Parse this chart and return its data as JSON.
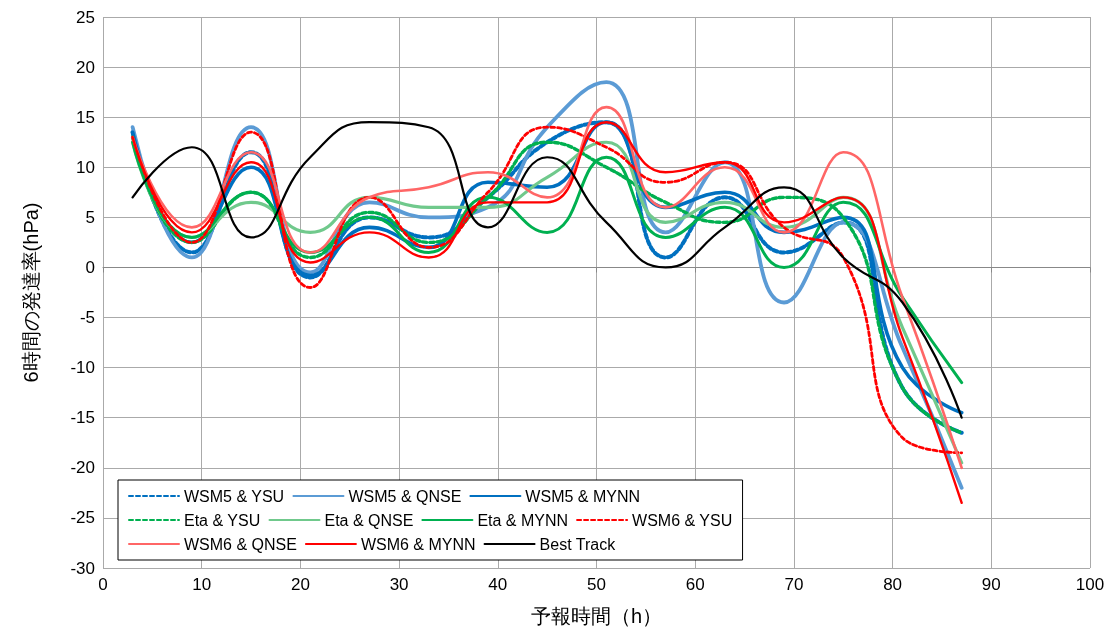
{
  "chart_data": {
    "type": "line",
    "xlabel": "予報時間（h）",
    "ylabel": "6時間の発達率(hPa)",
    "x": [
      3,
      9,
      15,
      21,
      27,
      33,
      39,
      45,
      51,
      57,
      63,
      69,
      75,
      81,
      87
    ],
    "xlim": [
      0,
      100
    ],
    "xticks": [
      0,
      10,
      20,
      30,
      40,
      50,
      60,
      70,
      80,
      90,
      100
    ],
    "ylim": [
      -30,
      25
    ],
    "yticks": [
      -30,
      -25,
      -20,
      -15,
      -10,
      -5,
      0,
      5,
      10,
      15,
      20,
      25
    ],
    "grid": true,
    "legend": "bottom left",
    "marker": "none",
    "series": [
      {
        "name": "WSM5 & YSU",
        "color": "#0070c0",
        "line_style": "dashed",
        "values": [
          13.5,
          1.5,
          11.5,
          -1,
          5,
          3,
          7,
          12.5,
          14.5,
          1,
          7,
          1.5,
          4.5,
          -12,
          -16.5
        ]
      },
      {
        "name": "WSM5 & QNSE",
        "color": "#5b9bd5",
        "line_style": "solid",
        "values": [
          14,
          1,
          14,
          -0.5,
          6.5,
          5,
          6,
          14,
          18.5,
          3.5,
          10.5,
          -3.5,
          4.5,
          -8,
          -22
        ]
      },
      {
        "name": "WSM5 & MYNN",
        "color": "#0070c0",
        "line_style": "solid",
        "values": [
          13.5,
          2.5,
          10,
          -0.8,
          4,
          2,
          8.5,
          8,
          14.5,
          6,
          7.5,
          3.5,
          5,
          -10,
          -14.5
        ]
      },
      {
        "name": "Eta & YSU",
        "color": "#00b050",
        "line_style": "dashed",
        "values": [
          13,
          2.5,
          7.5,
          1,
          5.5,
          2.5,
          7,
          12.5,
          10,
          6.5,
          4.5,
          7,
          5,
          -12,
          -16.5
        ]
      },
      {
        "name": "Eta & QNSE",
        "color": "#70c98c",
        "line_style": "solid",
        "values": [
          12.5,
          3,
          6.5,
          3.5,
          7,
          6,
          6,
          9,
          12.5,
          4.5,
          6.5,
          4,
          7,
          -6,
          -19.5
        ]
      },
      {
        "name": "Eta & MYNN",
        "color": "#00b050",
        "line_style": "solid",
        "values": [
          12.5,
          3,
          7.5,
          1.5,
          5,
          1.5,
          7,
          3.5,
          11,
          3,
          6,
          0,
          6.5,
          -3,
          -11.5
        ]
      },
      {
        "name": "WSM6 & YSU",
        "color": "#ff0000",
        "line_style": "dashed",
        "values": [
          13,
          2.5,
          13.5,
          -2,
          7,
          2,
          7.5,
          14,
          12,
          8.5,
          10.5,
          4,
          1,
          -17,
          -18.5
        ]
      },
      {
        "name": "WSM6 & QNSE",
        "color": "#ff6666",
        "line_style": "solid",
        "values": [
          13,
          4,
          11.5,
          1.5,
          7,
          8,
          9.5,
          7,
          16,
          6,
          10,
          3.5,
          11.5,
          -3,
          -20
        ]
      },
      {
        "name": "WSM6 & MYNN",
        "color": "#ff0000",
        "line_style": "solid",
        "values": [
          13,
          3.5,
          10.5,
          0.5,
          3.5,
          1,
          6.5,
          6.5,
          14.5,
          9.5,
          10.5,
          4.5,
          7,
          -7,
          -23.5
        ]
      },
      {
        "name": "Best Track",
        "color": "#000000",
        "line_style": "solid",
        "values": [
          7,
          12,
          3,
          11,
          14.5,
          14,
          4,
          11,
          4.5,
          0,
          4,
          8,
          1,
          -3.5,
          -15
        ]
      }
    ]
  }
}
